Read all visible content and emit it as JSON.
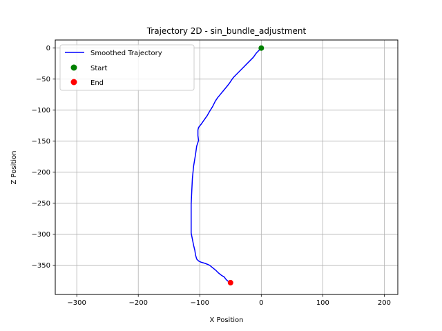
{
  "chart_data": {
    "type": "line",
    "title": "Trajectory 2D - sin_bundle_adjustment",
    "xlabel": "X Position",
    "ylabel": "Z Position",
    "xlim": [
      -335,
      222
    ],
    "ylim": [
      -397,
      13
    ],
    "xticks": [
      -300,
      -200,
      -100,
      0,
      100,
      200
    ],
    "xtick_labels": [
      "−300",
      "−200",
      "−100",
      "0",
      "100",
      "200"
    ],
    "yticks": [
      0,
      -50,
      -100,
      -150,
      -200,
      -250,
      -300,
      -350
    ],
    "ytick_labels": [
      "0",
      "−50",
      "−100",
      "−150",
      "−200",
      "−250",
      "−300",
      "−350"
    ],
    "grid": true,
    "legend_position": "top-left",
    "series": [
      {
        "name": "Smoothed Trajectory",
        "kind": "line",
        "color": "#0000ff",
        "points": [
          [
            0,
            0
          ],
          [
            -3,
            -3
          ],
          [
            -8,
            -8
          ],
          [
            -13,
            -15
          ],
          [
            -18,
            -20
          ],
          [
            -23,
            -25
          ],
          [
            -29,
            -31
          ],
          [
            -35,
            -37
          ],
          [
            -40,
            -42
          ],
          [
            -45,
            -47
          ],
          [
            -48,
            -51
          ],
          [
            -52,
            -57
          ],
          [
            -56,
            -62
          ],
          [
            -61,
            -68
          ],
          [
            -66,
            -74
          ],
          [
            -71,
            -80
          ],
          [
            -75,
            -86
          ],
          [
            -79,
            -94
          ],
          [
            -84,
            -102
          ],
          [
            -88,
            -109
          ],
          [
            -93,
            -116
          ],
          [
            -98,
            -123
          ],
          [
            -102,
            -128
          ],
          [
            -103,
            -132
          ],
          [
            -103,
            -141
          ],
          [
            -102,
            -149
          ],
          [
            -105,
            -158
          ],
          [
            -107,
            -172
          ],
          [
            -110,
            -190
          ],
          [
            -112,
            -210
          ],
          [
            -113,
            -230
          ],
          [
            -114,
            -252
          ],
          [
            -114,
            -275
          ],
          [
            -114,
            -298
          ],
          [
            -112,
            -308
          ],
          [
            -110,
            -318
          ],
          [
            -108,
            -326
          ],
          [
            -107,
            -333
          ],
          [
            -105,
            -340
          ],
          [
            -102,
            -343
          ],
          [
            -98,
            -345
          ],
          [
            -91,
            -347
          ],
          [
            -84,
            -350
          ],
          [
            -79,
            -354
          ],
          [
            -74,
            -358
          ],
          [
            -70,
            -362
          ],
          [
            -65,
            -366
          ],
          [
            -60,
            -369
          ],
          [
            -58,
            -372
          ],
          [
            -55,
            -375
          ],
          [
            -50,
            -378
          ]
        ]
      },
      {
        "name": "Start",
        "kind": "scatter",
        "color": "#008000",
        "points": [
          [
            0,
            0
          ]
        ]
      },
      {
        "name": "End",
        "kind": "scatter",
        "color": "#ff0000",
        "points": [
          [
            -50,
            -378
          ]
        ]
      }
    ]
  }
}
